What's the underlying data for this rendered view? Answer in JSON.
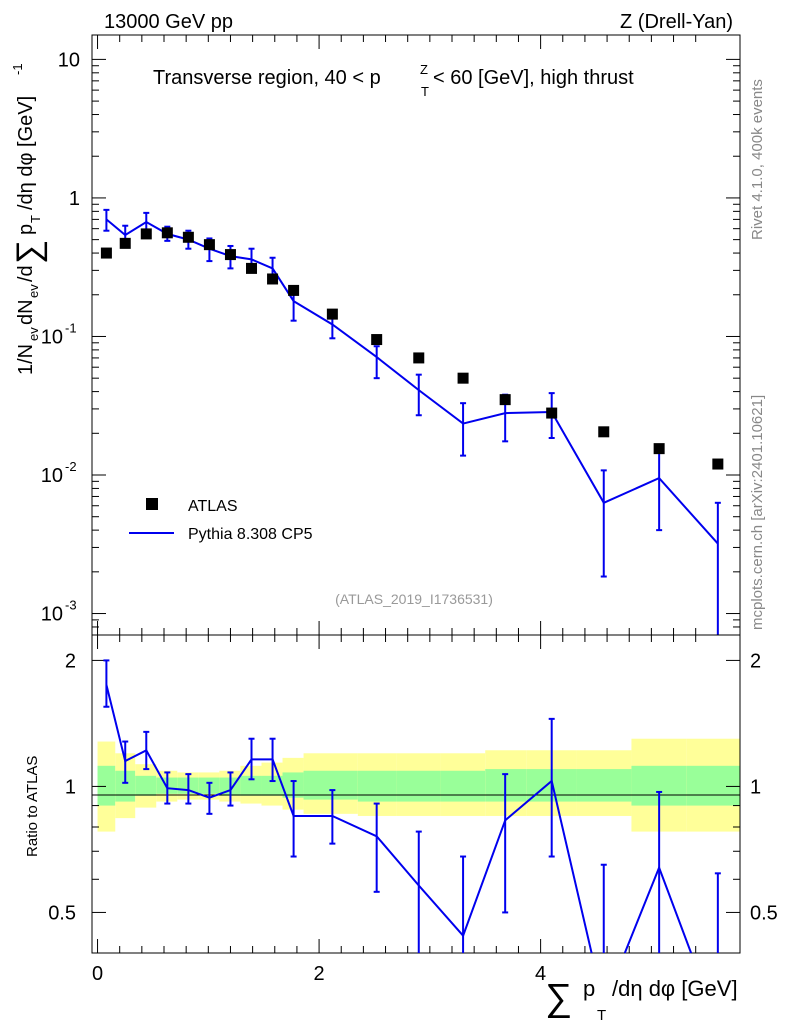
{
  "header": {
    "left": "13000 GeV pp",
    "right": "Z (Drell-Yan)"
  },
  "side_labels": {
    "rivet": "Rivet 4.1.0,  400k events",
    "source": "mcplots.cern.ch [arXiv:2401.10621]"
  },
  "main_panel": {
    "title_prefix": "Transverse region, 40 < p",
    "title_sub": "T",
    "title_sup": "Z",
    "title_suffix": " < 60 [GeV], high thrust",
    "analysis_id": "(ATLAS_2019_I1736531)",
    "ylabel": "1/N_ev dN_ev/d∑ p_T /dη dφ [GeV]^-1",
    "ytick_labels": [
      {
        "base": "10",
        "exp": "-3"
      },
      {
        "base": "10",
        "exp": "-2"
      },
      {
        "base": "10",
        "exp": "-1"
      },
      {
        "base": "1",
        "exp": ""
      },
      {
        "base": "10",
        "exp": ""
      }
    ]
  },
  "ratio_panel": {
    "ylabel": "Ratio to ATLAS",
    "ytick_labels": [
      "0.5",
      "1",
      "2"
    ]
  },
  "x_axis": {
    "label": "∑ p_T /dη dφ [GeV]",
    "tick_labels": [
      "0",
      "2",
      "4"
    ]
  },
  "legend": {
    "data_label": "ATLAS",
    "mc_label": "Pythia 8.308 CP5"
  },
  "colors": {
    "data": "#000000",
    "mc": "#0000ee",
    "band_inner": "#99ff99",
    "band_outer": "#ffff99"
  },
  "chart_data": {
    "type": "scatter",
    "xlim": [
      -0.05,
      5.8
    ],
    "main_ylim": [
      0.0007,
      15
    ],
    "main_yscale": "log",
    "ratio_ylim": [
      0.4,
      2.3
    ],
    "ratio_yscale": "log",
    "data": {
      "name": "ATLAS",
      "x": [
        0.08,
        0.25,
        0.44,
        0.63,
        0.82,
        1.01,
        1.2,
        1.39,
        1.58,
        1.77,
        2.12,
        2.52,
        2.9,
        3.3,
        3.68,
        4.1,
        4.57,
        5.07,
        5.6
      ],
      "y": [
        0.4,
        0.47,
        0.55,
        0.56,
        0.52,
        0.46,
        0.39,
        0.31,
        0.26,
        0.215,
        0.145,
        0.095,
        0.07,
        0.05,
        0.035,
        0.028,
        0.0205,
        0.0155,
        0.012
      ]
    },
    "mc": {
      "name": "Pythia 8.308 CP5",
      "x": [
        0.08,
        0.25,
        0.44,
        0.63,
        0.82,
        1.01,
        1.2,
        1.39,
        1.58,
        1.77,
        2.12,
        2.52,
        2.9,
        3.3,
        3.68,
        4.1,
        4.57,
        5.07,
        5.6
      ],
      "y": [
        0.7,
        0.54,
        0.67,
        0.55,
        0.5,
        0.43,
        0.38,
        0.36,
        0.31,
        0.18,
        0.122,
        0.071,
        0.041,
        0.0235,
        0.028,
        0.0285,
        0.0063,
        0.0095,
        0.0032
      ],
      "err_lo": [
        0.58,
        0.44,
        0.58,
        0.49,
        0.43,
        0.35,
        0.31,
        0.29,
        0.26,
        0.13,
        0.097,
        0.05,
        0.027,
        0.0138,
        0.0175,
        0.0185,
        0.00185,
        0.004,
        0.0007
      ],
      "err_hi": [
        0.82,
        0.63,
        0.78,
        0.62,
        0.58,
        0.51,
        0.45,
        0.43,
        0.37,
        0.23,
        0.148,
        0.085,
        0.053,
        0.033,
        0.038,
        0.039,
        0.0108,
        0.0148,
        0.0063
      ]
    },
    "ratio": {
      "x": [
        0.08,
        0.25,
        0.44,
        0.63,
        0.82,
        1.01,
        1.2,
        1.39,
        1.58,
        1.77,
        2.12,
        2.52,
        2.9,
        3.3,
        3.68,
        4.1,
        4.57,
        5.07,
        5.6
      ],
      "y": [
        1.75,
        1.15,
        1.22,
        0.99,
        0.98,
        0.94,
        0.98,
        1.16,
        1.16,
        0.85,
        0.85,
        0.76,
        0.58,
        0.44,
        0.83,
        1.03,
        0.3,
        0.64,
        0.27
      ],
      "err_lo": [
        1.55,
        1.02,
        1.1,
        0.91,
        0.91,
        0.86,
        0.9,
        1.04,
        1.03,
        0.68,
        0.73,
        0.56,
        0.35,
        0.25,
        0.5,
        0.68,
        0.1,
        0.3,
        0.1
      ],
      "err_hi": [
        2.0,
        1.28,
        1.35,
        1.08,
        1.07,
        1.02,
        1.08,
        1.3,
        1.3,
        1.03,
        0.98,
        0.91,
        0.78,
        0.68,
        1.07,
        1.45,
        0.65,
        0.97,
        0.62
      ]
    },
    "bins": {
      "edges": [
        0.0,
        0.16,
        0.34,
        0.53,
        0.72,
        0.91,
        1.1,
        1.29,
        1.48,
        1.67,
        1.86,
        2.35,
        2.7,
        3.1,
        3.5,
        3.87,
        4.32,
        4.82,
        5.32,
        5.8
      ],
      "inner_lo": [
        0.9,
        0.92,
        0.95,
        0.96,
        0.96,
        0.96,
        0.95,
        0.95,
        0.95,
        0.94,
        0.93,
        0.92,
        0.92,
        0.92,
        0.92,
        0.92,
        0.92,
        0.9,
        0.9
      ],
      "inner_hi": [
        1.12,
        1.09,
        1.06,
        1.05,
        1.05,
        1.05,
        1.05,
        1.06,
        1.06,
        1.08,
        1.09,
        1.09,
        1.09,
        1.09,
        1.1,
        1.1,
        1.1,
        1.12,
        1.12
      ],
      "outer_lo": [
        0.78,
        0.84,
        0.89,
        0.92,
        0.93,
        0.93,
        0.92,
        0.91,
        0.9,
        0.88,
        0.86,
        0.85,
        0.85,
        0.85,
        0.85,
        0.85,
        0.85,
        0.78,
        0.78
      ],
      "outer_hi": [
        1.28,
        1.2,
        1.13,
        1.09,
        1.08,
        1.08,
        1.09,
        1.12,
        1.14,
        1.17,
        1.2,
        1.2,
        1.2,
        1.2,
        1.22,
        1.22,
        1.22,
        1.3,
        1.3
      ]
    }
  }
}
